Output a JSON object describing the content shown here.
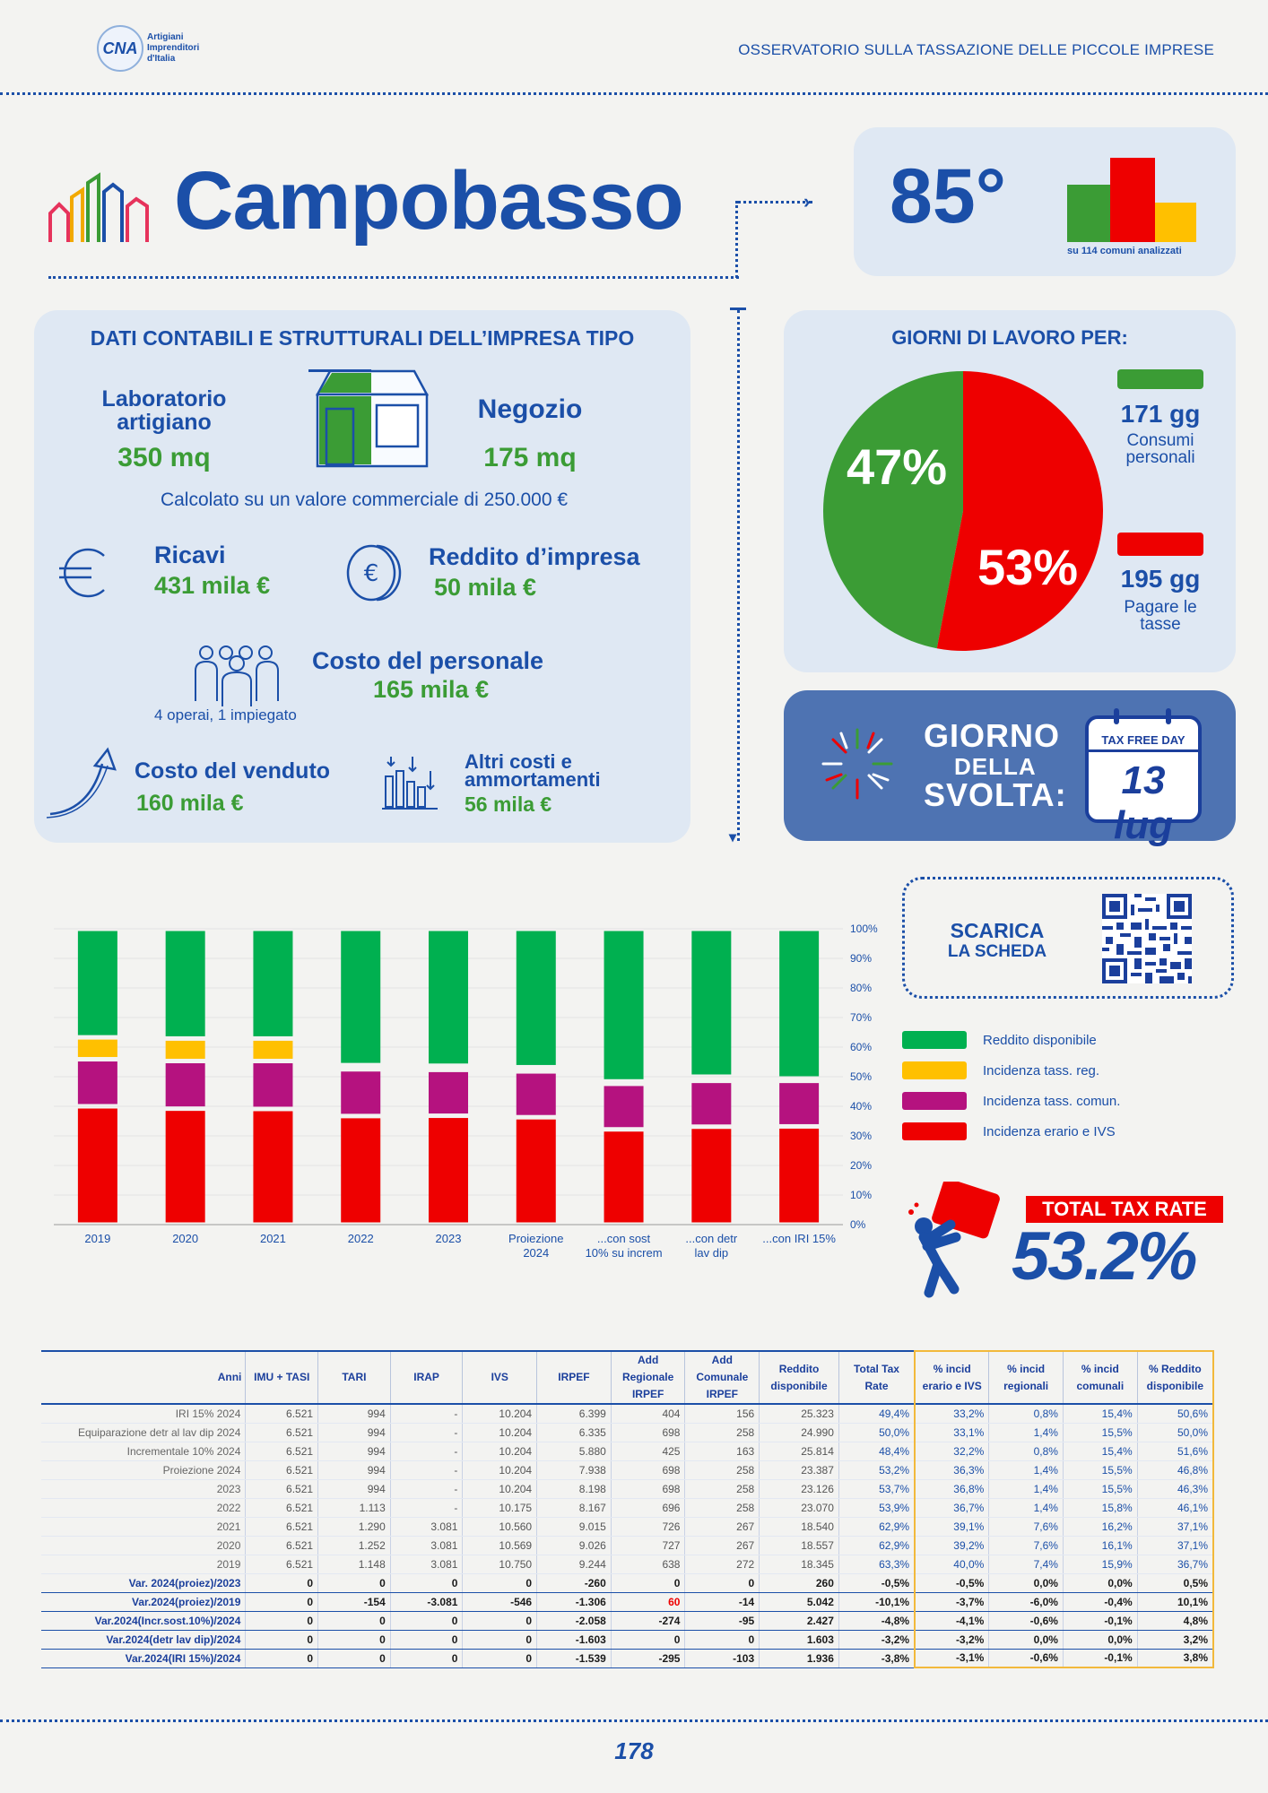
{
  "header": {
    "logo_text": "CNA",
    "logo_sub": [
      "Artigiani",
      "Imprenditori",
      "d'Italia"
    ],
    "title": "OSSERVATORIO SULLA TASSAZIONE DELLE PICCOLE IMPRESE"
  },
  "city": {
    "name": "Campobasso",
    "rank": "85°",
    "rank_note": "su 114 comuni analizzati"
  },
  "company": {
    "section_title": "DATI CONTABILI E STRUTTURALI DELL’IMPRESA TIPO",
    "lab_label": "Laboratorio artigiano",
    "lab_value": "350 mq",
    "shop_label": "Negozio",
    "shop_value": "175 mq",
    "commercial_note": "Calcolato su un valore commerciale di 250.000 €",
    "revenue_label": "Ricavi",
    "revenue_value": "431 mila €",
    "income_label": "Reddito d’impresa",
    "income_value": "50 mila €",
    "staff_label": "Costo del personale",
    "staff_value": "165 mila €",
    "staff_note": "4 operai, 1 impiegato",
    "cogs_label": "Costo del venduto",
    "cogs_value": "160 mila €",
    "other_label": "Altri costi e ammortamenti",
    "other_value": "56 mila €"
  },
  "workdays": {
    "title": "GIORNI DI LAVORO PER:",
    "green_pct": "47%",
    "red_pct": "53%",
    "green_share": 0.47,
    "consumi_days": "171 gg",
    "consumi_label": "Consumi personali",
    "tasse_days": "195 gg",
    "tasse_label": "Pagare le tasse"
  },
  "tax_free": {
    "line1": "GIORNO",
    "line2": "DELLA",
    "line3": "SVOLTA:",
    "cal_label": "TAX FREE DAY",
    "date": "13 lug"
  },
  "download": {
    "line1": "SCARICA",
    "line2": "LA SCHEDA"
  },
  "total_tax": {
    "label": "TOTAL TAX RATE",
    "value": "53.2%"
  },
  "colors": {
    "green": "#00b050",
    "yellow": "#ffc000",
    "magenta": "#b5127f",
    "red": "#ee0000",
    "blue": "#1b4fa8"
  },
  "chart_data": {
    "type": "bar",
    "stacked": true,
    "categories": [
      "2019",
      "2020",
      "2021",
      "2022",
      "2023",
      "Proiezione 2024",
      "...con sost 10% su increm",
      "...con detr lav dip",
      "...con IRI 15%"
    ],
    "series": [
      {
        "name": "Incidenza erario e IVS",
        "values": [
          40.0,
          39.2,
          39.1,
          36.7,
          36.8,
          36.3,
          32.2,
          33.1,
          33.2
        ]
      },
      {
        "name": "Incidenza tass. comun.",
        "values": [
          15.9,
          16.1,
          16.2,
          15.8,
          15.5,
          15.5,
          15.4,
          15.5,
          15.4
        ]
      },
      {
        "name": "Incidenza tass. reg.",
        "values": [
          7.4,
          7.6,
          7.6,
          1.4,
          1.4,
          1.4,
          0.8,
          1.4,
          0.8
        ]
      },
      {
        "name": "Reddito disponibile",
        "values": [
          36.7,
          37.1,
          37.1,
          46.1,
          46.3,
          46.8,
          51.6,
          50.0,
          50.6
        ]
      }
    ],
    "ylim": [
      0,
      100
    ],
    "yticks": [
      "0%",
      "10%",
      "20%",
      "30%",
      "40%",
      "50%",
      "60%",
      "70%",
      "80%",
      "90%",
      "100%"
    ],
    "legend": [
      "Reddito disponibile",
      "Incidenza tass. reg.",
      "Incidenza tass. comun.",
      "Incidenza erario e IVS"
    ],
    "legend_position": "right"
  },
  "table": {
    "headers": [
      "Anni",
      "IMU + TASI",
      "TARI",
      "IRAP",
      "IVS",
      "IRPEF",
      "Add Regionale IRPEF",
      "Add Comunale IRPEF",
      "Reddito disponibile",
      "Total Tax Rate",
      "% incid erario e IVS",
      "% incid regionali",
      "% incid comunali",
      "% Reddito disponibile"
    ],
    "rows": [
      [
        "IRI 15% 2024",
        "6.521",
        "994",
        "-",
        "10.204",
        "6.399",
        "404",
        "156",
        "25.323",
        "49,4%",
        "33,2%",
        "0,8%",
        "15,4%",
        "50,6%"
      ],
      [
        "Equiparazione detr al lav dip 2024",
        "6.521",
        "994",
        "-",
        "10.204",
        "6.335",
        "698",
        "258",
        "24.990",
        "50,0%",
        "33,1%",
        "1,4%",
        "15,5%",
        "50,0%"
      ],
      [
        "Incrementale 10% 2024",
        "6.521",
        "994",
        "-",
        "10.204",
        "5.880",
        "425",
        "163",
        "25.814",
        "48,4%",
        "32,2%",
        "0,8%",
        "15,4%",
        "51,6%"
      ],
      [
        "Proiezione 2024",
        "6.521",
        "994",
        "-",
        "10.204",
        "7.938",
        "698",
        "258",
        "23.387",
        "53,2%",
        "36,3%",
        "1,4%",
        "15,5%",
        "46,8%"
      ],
      [
        "2023",
        "6.521",
        "994",
        "-",
        "10.204",
        "8.198",
        "698",
        "258",
        "23.126",
        "53,7%",
        "36,8%",
        "1,4%",
        "15,5%",
        "46,3%"
      ],
      [
        "2022",
        "6.521",
        "1.113",
        "-",
        "10.175",
        "8.167",
        "696",
        "258",
        "23.070",
        "53,9%",
        "36,7%",
        "1,4%",
        "15,8%",
        "46,1%"
      ],
      [
        "2021",
        "6.521",
        "1.290",
        "3.081",
        "10.560",
        "9.015",
        "726",
        "267",
        "18.540",
        "62,9%",
        "39,1%",
        "7,6%",
        "16,2%",
        "37,1%"
      ],
      [
        "2020",
        "6.521",
        "1.252",
        "3.081",
        "10.569",
        "9.026",
        "727",
        "267",
        "18.557",
        "62,9%",
        "39,2%",
        "7,6%",
        "16,1%",
        "37,1%"
      ],
      [
        "2019",
        "6.521",
        "1.148",
        "3.081",
        "10.750",
        "9.244",
        "638",
        "272",
        "18.345",
        "63,3%",
        "40,0%",
        "7,4%",
        "15,9%",
        "36,7%"
      ]
    ],
    "var_rows": [
      [
        "Var. 2024(proiez)/2023",
        "0",
        "0",
        "0",
        "0",
        "-260",
        "0",
        "0",
        "260",
        "-0,5%",
        "-0,5%",
        "0,0%",
        "0,0%",
        "0,5%"
      ],
      [
        "Var.2024(proiez)/2019",
        "0",
        "-154",
        "-3.081",
        "-546",
        "-1.306",
        "60",
        "-14",
        "5.042",
        "-10,1%",
        "-3,7%",
        "-6,0%",
        "-0,4%",
        "10,1%"
      ],
      [
        "Var.2024(Incr.sost.10%)/2024",
        "0",
        "0",
        "0",
        "0",
        "-2.058",
        "-274",
        "-95",
        "2.427",
        "-4,8%",
        "-4,1%",
        "-0,6%",
        "-0,1%",
        "4,8%"
      ],
      [
        "Var.2024(detr lav dip)/2024",
        "0",
        "0",
        "0",
        "0",
        "-1.603",
        "0",
        "0",
        "1.603",
        "-3,2%",
        "-3,2%",
        "0,0%",
        "0,0%",
        "3,2%"
      ],
      [
        "Var.2024(IRI 15%)/2024",
        "0",
        "0",
        "0",
        "0",
        "-1.539",
        "-295",
        "-103",
        "1.936",
        "-3,8%",
        "-3,1%",
        "-0,6%",
        "-0,1%",
        "3,8%"
      ]
    ]
  },
  "footer": {
    "page_number": "178"
  }
}
